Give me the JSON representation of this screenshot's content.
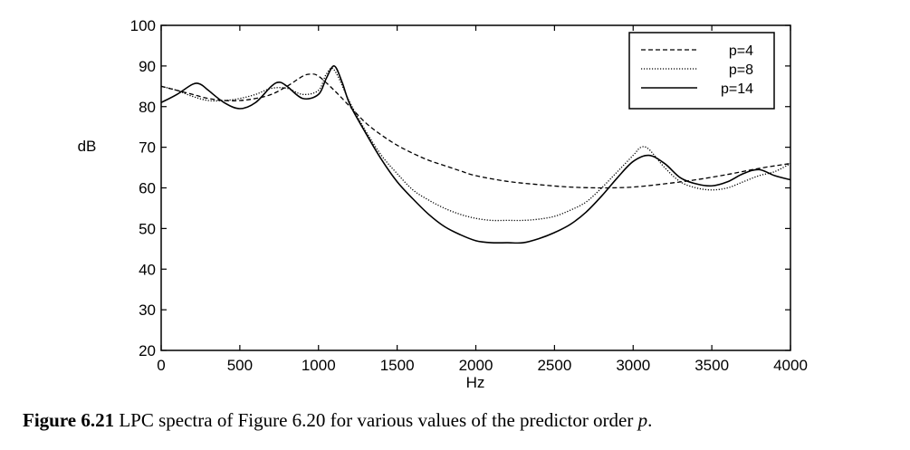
{
  "chart_data": {
    "type": "line",
    "xlabel": "Hz",
    "ylabel": "dB",
    "xlim": [
      0,
      4000
    ],
    "ylim": [
      20,
      100
    ],
    "xticks": [
      0,
      500,
      1000,
      1500,
      2000,
      2500,
      3000,
      3500,
      4000
    ],
    "yticks": [
      20,
      30,
      40,
      50,
      60,
      70,
      80,
      90,
      100
    ],
    "grid": false,
    "legend_position": "top-right",
    "series": [
      {
        "name": "p=4",
        "style": "dashed",
        "x": [
          0,
          100,
          200,
          300,
          400,
          500,
          600,
          700,
          800,
          900,
          950,
          1000,
          1100,
          1200,
          1300,
          1400,
          1500,
          1600,
          1700,
          1800,
          1900,
          2000,
          2200,
          2400,
          2600,
          2800,
          3000,
          3200,
          3400,
          3600,
          3800,
          4000
        ],
        "y": [
          85,
          84,
          83,
          82,
          81.5,
          81.5,
          82,
          83,
          85,
          87.5,
          88,
          87.5,
          84,
          80,
          76,
          73,
          70.5,
          68.5,
          66.8,
          65.5,
          64.2,
          63,
          61.6,
          60.8,
          60.2,
          60,
          60.2,
          61,
          62,
          63.3,
          64.8,
          66
        ]
      },
      {
        "name": "p=8",
        "style": "dotted",
        "x": [
          0,
          100,
          200,
          300,
          400,
          500,
          600,
          700,
          800,
          900,
          1000,
          1050,
          1100,
          1200,
          1300,
          1400,
          1500,
          1600,
          1700,
          1800,
          1900,
          2000,
          2100,
          2200,
          2300,
          2400,
          2500,
          2600,
          2700,
          2800,
          2900,
          3000,
          3050,
          3100,
          3200,
          3300,
          3400,
          3500,
          3600,
          3700,
          3800,
          3900,
          4000
        ],
        "y": [
          85,
          84,
          82.5,
          81.5,
          81.5,
          82,
          83,
          84.5,
          84.5,
          83,
          84,
          88,
          89,
          81,
          74,
          68,
          63.5,
          59.5,
          57,
          55,
          53.5,
          52.5,
          52,
          52,
          52,
          52.3,
          53,
          54.5,
          56.5,
          60,
          64,
          68,
          70,
          69.5,
          65,
          61.5,
          60,
          59.5,
          60,
          61.5,
          63,
          64,
          66
        ]
      },
      {
        "name": "p=14",
        "style": "solid",
        "x": [
          0,
          100,
          200,
          250,
          300,
          400,
          500,
          600,
          700,
          750,
          800,
          900,
          1000,
          1050,
          1100,
          1150,
          1200,
          1300,
          1400,
          1500,
          1600,
          1700,
          1800,
          1900,
          2000,
          2100,
          2200,
          2300,
          2400,
          2500,
          2600,
          2700,
          2800,
          2900,
          3000,
          3100,
          3200,
          3300,
          3400,
          3500,
          3600,
          3700,
          3800,
          3900,
          4000
        ],
        "y": [
          81,
          83,
          85.5,
          85.5,
          84,
          81,
          79.5,
          81,
          85,
          86,
          85,
          82,
          83,
          87,
          90,
          86,
          80.5,
          73.5,
          67,
          61.5,
          57.3,
          53.5,
          50.5,
          48.5,
          47,
          46.5,
          46.5,
          46.5,
          47.5,
          49,
          51,
          54,
          58,
          62.5,
          66.5,
          68,
          66,
          62.5,
          61,
          60.5,
          61.5,
          63.5,
          64.5,
          63,
          62
        ]
      }
    ]
  },
  "caption": {
    "figure_number": "Figure 6.21",
    "text_before_var": " LPC spectra of Figure 6.20 for various values of the predictor order ",
    "variable": "p",
    "text_after_var": "."
  }
}
